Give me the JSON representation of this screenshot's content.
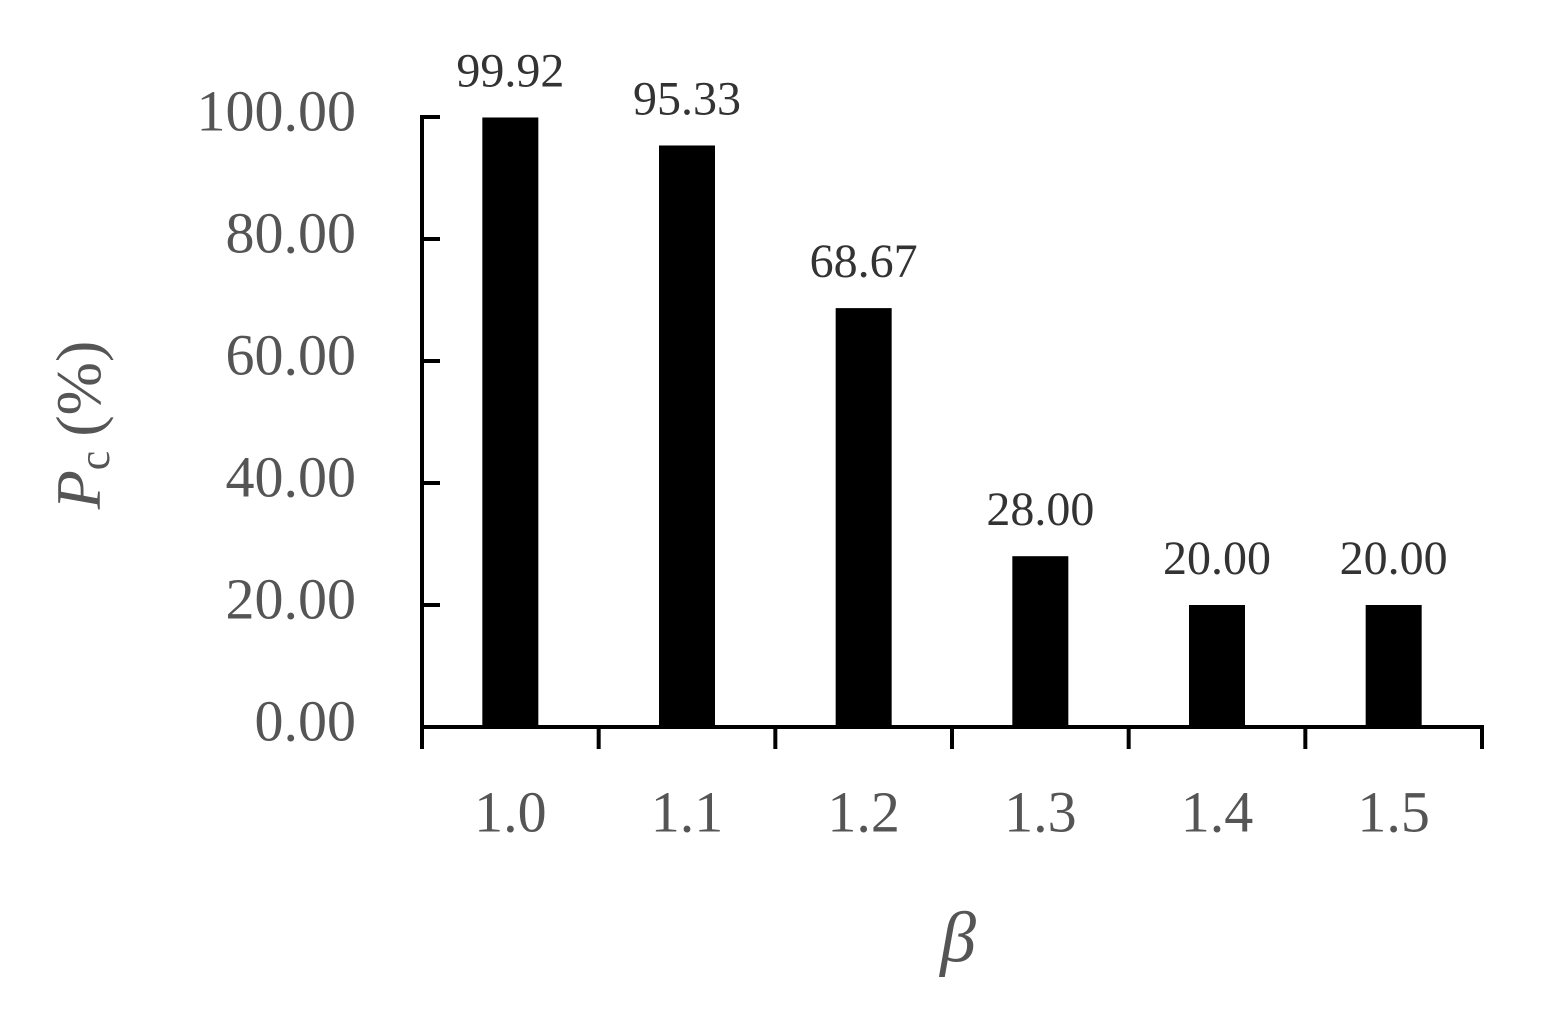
{
  "chart_data": {
    "type": "bar",
    "categories": [
      "1.0",
      "1.1",
      "1.2",
      "1.3",
      "1.4",
      "1.5"
    ],
    "values": [
      99.92,
      95.33,
      68.67,
      28,
      20,
      20
    ],
    "value_labels": [
      "99.92",
      "95.33",
      "68.67",
      "28.00",
      "20.00",
      "20.00"
    ],
    "color": "#000000",
    "ylim": [
      0,
      100
    ],
    "yticks": [
      {
        "value": 0,
        "label": "0.00"
      },
      {
        "value": 20,
        "label": "20.00"
      },
      {
        "value": 40,
        "label": "40.00"
      },
      {
        "value": 60,
        "label": "60.00"
      },
      {
        "value": 80,
        "label": "80.00"
      },
      {
        "value": 100,
        "label": "100.00"
      }
    ],
    "x_label": "β",
    "y_label": "P",
    "y_label_subscript": "c",
    "y_label_unit": "(%)",
    "grid": false
  }
}
